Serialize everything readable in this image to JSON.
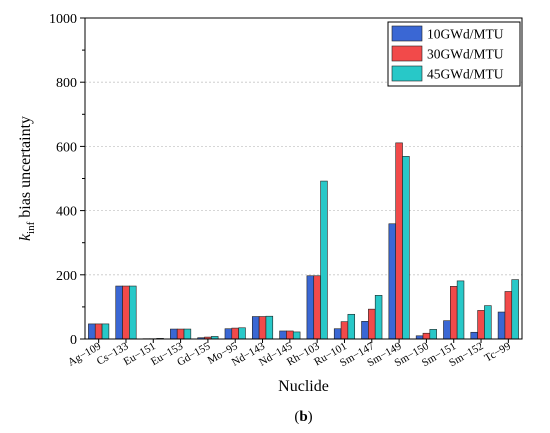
{
  "chart_data": {
    "type": "bar",
    "categories": [
      "Ag−109",
      "Cs−133",
      "Eu−151",
      "Eu−153",
      "Gd−155",
      "Mo−95",
      "Nd−143",
      "Nd−145",
      "Rh−103",
      "Ru−101",
      "Sm−147",
      "Sm−149",
      "Sm−150",
      "Sm−151",
      "Sm−152",
      "Tc−99"
    ],
    "series": [
      {
        "name": "10GWd/MTU",
        "values": [
          47,
          165,
          1,
          31,
          4,
          32,
          70,
          25,
          197,
          32,
          55,
          359,
          10,
          57,
          21,
          84
        ]
      },
      {
        "name": "30GWd/MTU",
        "values": [
          47,
          165,
          1,
          31,
          6,
          34,
          70,
          25,
          197,
          54,
          93,
          611,
          18,
          164,
          89,
          148
        ]
      },
      {
        "name": "45GWd/MTU",
        "values": [
          47,
          165,
          2,
          31,
          8,
          35,
          71,
          22,
          492,
          77,
          136,
          569,
          30,
          181,
          104,
          185
        ]
      }
    ],
    "colors": [
      "#3a67d4",
      "#f24a4a",
      "#28c8c8"
    ],
    "xlabel": "Nuclide",
    "ylabel_main": "k",
    "ylabel_sub": "inf",
    "ylabel_rest": " bias uncertainty",
    "ylim": [
      0,
      1000
    ],
    "yticks": [
      0,
      200,
      400,
      600,
      800,
      1000
    ],
    "grid": true,
    "legend_position": "top-right",
    "caption_open": "(",
    "caption_letter": "b",
    "caption_close": ")"
  }
}
